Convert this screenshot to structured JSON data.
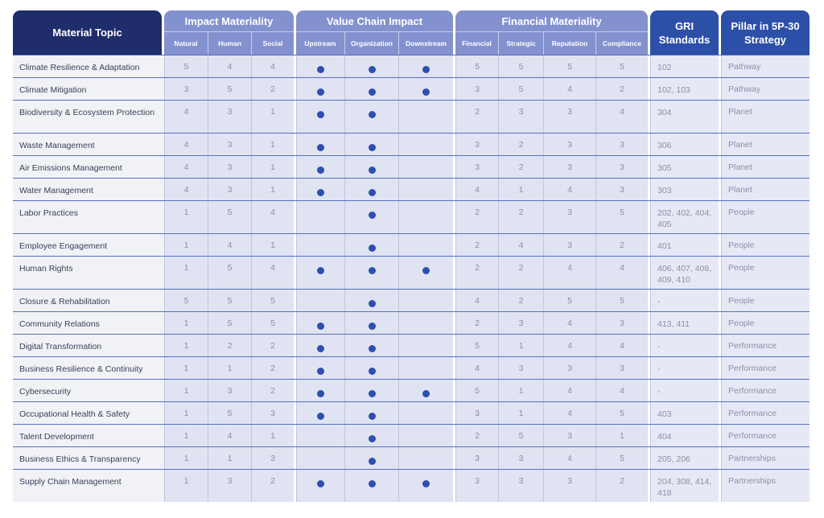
{
  "header": {
    "topic": "Material Topic",
    "impact": {
      "title": "Impact Materiality",
      "cols": [
        "Natural",
        "Human",
        "Social"
      ]
    },
    "value": {
      "title": "Value Chain Impact",
      "cols": [
        "Upstream",
        "Organization",
        "Downstream"
      ]
    },
    "financial": {
      "title": "Financial Materiality",
      "cols": [
        "Financial",
        "Strategic",
        "Reputation",
        "Compliance"
      ]
    },
    "gri": "GRI Standards",
    "pillar": "Pillar in 5P-30 Strategy"
  },
  "colors": {
    "navy": "#1f2d6b",
    "blue": "#2c4fa8",
    "group": "#8491cf",
    "dot": "#2c4fb0"
  },
  "rows": [
    {
      "topic": "Climate Resilience & Adaptation",
      "impact": [
        "5",
        "4",
        "4"
      ],
      "value": [
        true,
        true,
        true
      ],
      "financial": [
        "5",
        "5",
        "5",
        "5"
      ],
      "gri": "102",
      "pillar": "Pathway"
    },
    {
      "topic": "Climate Mitigation",
      "impact": [
        "3",
        "5",
        "2"
      ],
      "value": [
        true,
        true,
        true
      ],
      "financial": [
        "3",
        "5",
        "4",
        "2"
      ],
      "gri": "102, 103",
      "pillar": "Pathway"
    },
    {
      "topic": "Biodiversity & Ecosystem Protection",
      "impact": [
        "4",
        "3",
        "1"
      ],
      "value": [
        true,
        true,
        false
      ],
      "financial": [
        "2",
        "3",
        "3",
        "4"
      ],
      "gri": "304",
      "pillar": "Planet"
    },
    {
      "topic": "Waste Management",
      "impact": [
        "4",
        "3",
        "1"
      ],
      "value": [
        true,
        true,
        false
      ],
      "financial": [
        "3",
        "2",
        "3",
        "3"
      ],
      "gri": "306",
      "pillar": "Planet"
    },
    {
      "topic": "Air Emissions Management",
      "impact": [
        "4",
        "3",
        "1"
      ],
      "value": [
        true,
        true,
        false
      ],
      "financial": [
        "3",
        "2",
        "3",
        "3"
      ],
      "gri": "305",
      "pillar": "Planet"
    },
    {
      "topic": "Water Management",
      "impact": [
        "4",
        "3",
        "1"
      ],
      "value": [
        true,
        true,
        false
      ],
      "financial": [
        "4",
        "1",
        "4",
        "3"
      ],
      "gri": "303",
      "pillar": "Planet"
    },
    {
      "topic": "Labor Practices",
      "impact": [
        "1",
        "5",
        "4"
      ],
      "value": [
        false,
        true,
        false
      ],
      "financial": [
        "2",
        "2",
        "3",
        "5"
      ],
      "gri": "202, 402, 404, 405",
      "pillar": "People"
    },
    {
      "topic": "Employee Engagement",
      "impact": [
        "1",
        "4",
        "1"
      ],
      "value": [
        false,
        true,
        false
      ],
      "financial": [
        "2",
        "4",
        "3",
        "2"
      ],
      "gri": "401",
      "pillar": "People"
    },
    {
      "topic": "Human Rights",
      "impact": [
        "1",
        "5",
        "4"
      ],
      "value": [
        true,
        true,
        true
      ],
      "financial": [
        "2",
        "2",
        "4",
        "4"
      ],
      "gri": "406, 407, 408, 409, 410",
      "pillar": "People"
    },
    {
      "topic": "Closure & Rehabilitation",
      "impact": [
        "5",
        "5",
        "5"
      ],
      "value": [
        false,
        true,
        false
      ],
      "financial": [
        "4",
        "2",
        "5",
        "5"
      ],
      "gri": "-",
      "pillar": "People"
    },
    {
      "topic": "Community Relations",
      "impact": [
        "1",
        "5",
        "5"
      ],
      "value": [
        true,
        true,
        false
      ],
      "financial": [
        "2",
        "3",
        "4",
        "3"
      ],
      "gri": "413, 411",
      "pillar": "People"
    },
    {
      "topic": "Digital Transformation",
      "impact": [
        "1",
        "2",
        "2"
      ],
      "value": [
        true,
        true,
        false
      ],
      "financial": [
        "5",
        "1",
        "4",
        "4"
      ],
      "gri": "-",
      "pillar": "Performance"
    },
    {
      "topic": "Business Resilience & Continuity",
      "impact": [
        "1",
        "1",
        "2"
      ],
      "value": [
        true,
        true,
        false
      ],
      "financial": [
        "4",
        "3",
        "3",
        "3"
      ],
      "gri": "-",
      "pillar": "Performance"
    },
    {
      "topic": "Cybersecurity",
      "impact": [
        "1",
        "3",
        "2"
      ],
      "value": [
        true,
        true,
        true
      ],
      "financial": [
        "5",
        "1",
        "4",
        "4"
      ],
      "gri": "-",
      "pillar": "Performance"
    },
    {
      "topic": "Occupational Health & Safety",
      "impact": [
        "1",
        "5",
        "3"
      ],
      "value": [
        true,
        true,
        false
      ],
      "financial": [
        "3",
        "1",
        "4",
        "5"
      ],
      "gri": "403",
      "pillar": "Performance"
    },
    {
      "topic": "Talent Development",
      "impact": [
        "1",
        "4",
        "1"
      ],
      "value": [
        false,
        true,
        false
      ],
      "financial": [
        "2",
        "5",
        "3",
        "1"
      ],
      "gri": "404",
      "pillar": "Performance"
    },
    {
      "topic": "Business Ethics & Transparency",
      "impact": [
        "1",
        "1",
        "3"
      ],
      "value": [
        false,
        true,
        false
      ],
      "financial": [
        "3",
        "3",
        "4",
        "5"
      ],
      "gri": "205, 206",
      "pillar": "Partnerships"
    },
    {
      "topic": "Supply Chain Management",
      "impact": [
        "1",
        "3",
        "2"
      ],
      "value": [
        true,
        true,
        true
      ],
      "financial": [
        "3",
        "3",
        "3",
        "2"
      ],
      "gri": "204, 308, 414, 418",
      "pillar": "Partnerships"
    }
  ]
}
